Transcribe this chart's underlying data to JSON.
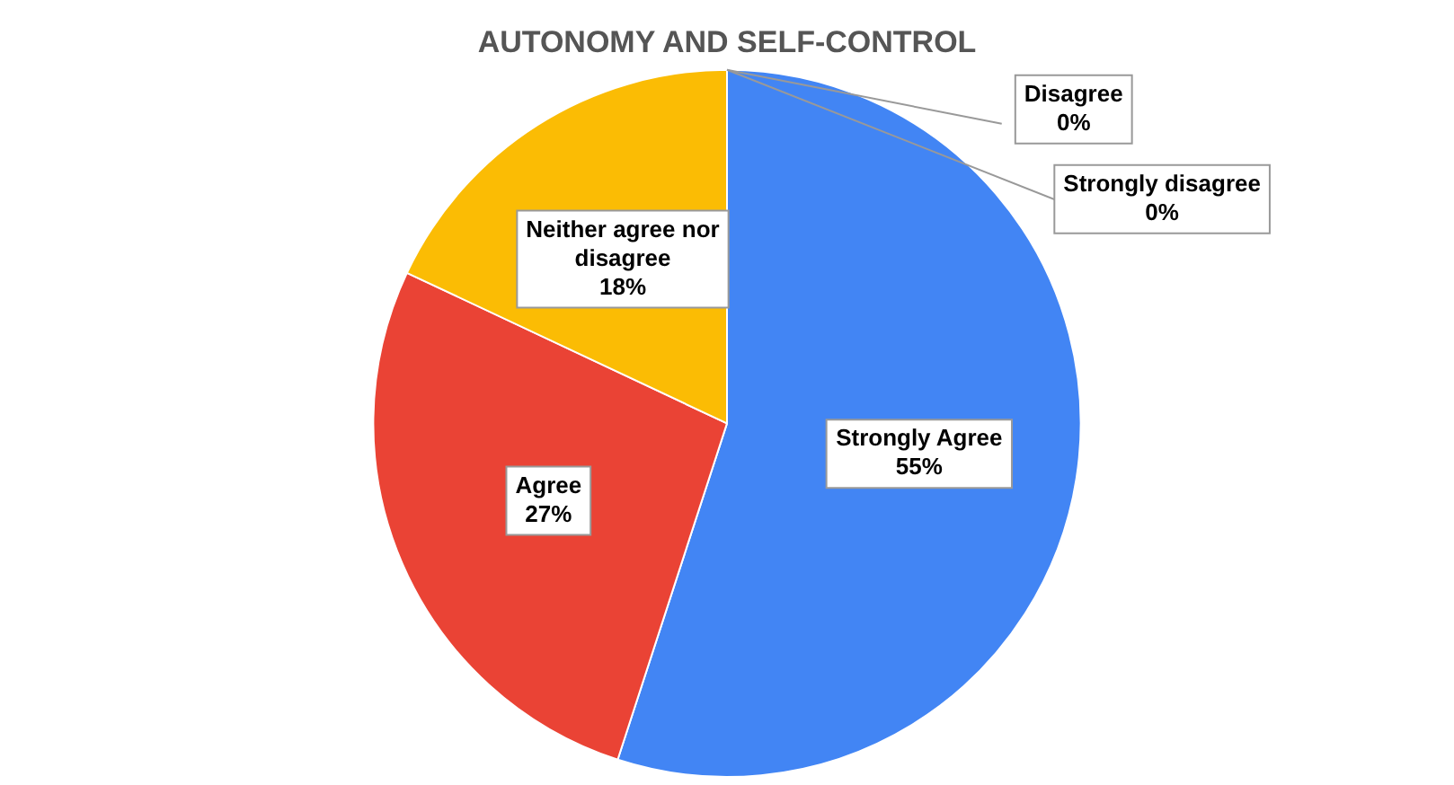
{
  "chart_data": {
    "type": "pie",
    "title": "AUTONOMY AND SELF-CONTROL",
    "categories": [
      "Strongly Agree",
      "Agree",
      "Neither agree nor disagree",
      "Disagree",
      "Strongly disagree"
    ],
    "values": [
      55,
      27,
      18,
      0,
      0
    ],
    "colors": [
      "#4285f4",
      "#ea4335",
      "#fbbc04",
      "#34a853",
      "#ff6d01"
    ],
    "value_labels": [
      "55%",
      "27%",
      "18%",
      "0%",
      "0%"
    ],
    "legend": false
  }
}
